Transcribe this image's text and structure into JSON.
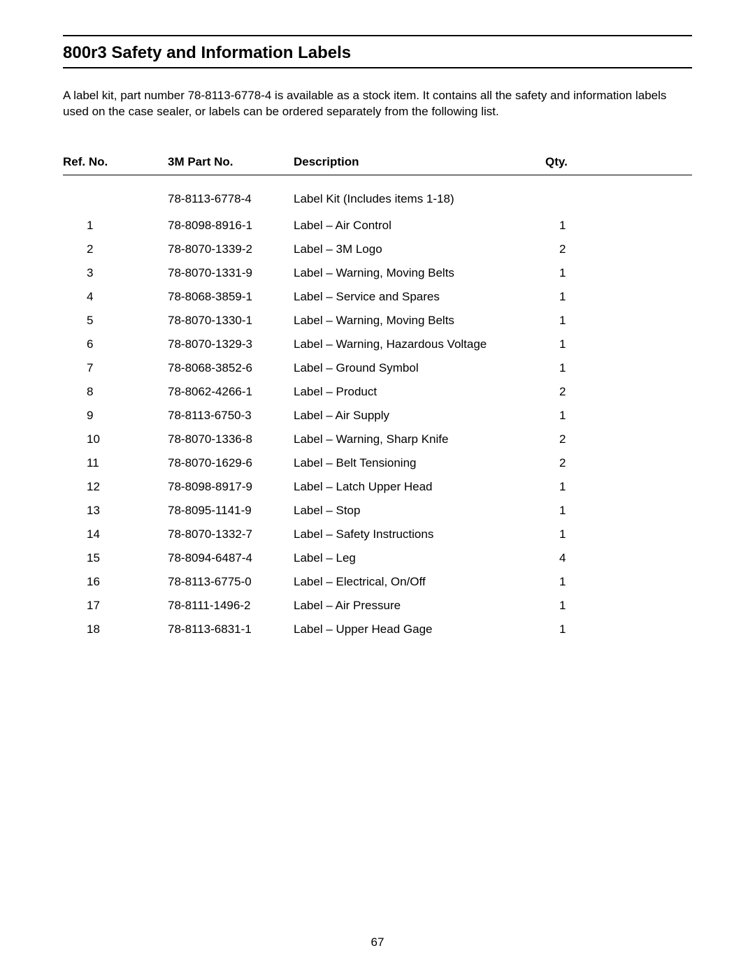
{
  "heading": "800r3 Safety and Information Labels",
  "intro": "A label kit, part number 78-8113-6778-4 is available as a stock item.  It contains all the safety and information labels used on the case sealer, or labels can be ordered separately from the following list.",
  "tableHeaders": {
    "ref": "Ref. No.",
    "part": "3M Part No.",
    "desc": "Description",
    "qty": "Qty."
  },
  "rows": [
    {
      "ref": "",
      "part": "78-8113-6778-4",
      "desc": "Label Kit (Includes items 1-18)",
      "qty": ""
    },
    {
      "ref": "1",
      "part": "78-8098-8916-1",
      "desc": "Label – Air Control",
      "qty": "1"
    },
    {
      "ref": "2",
      "part": "78-8070-1339-2",
      "desc": "Label – 3M Logo",
      "qty": "2"
    },
    {
      "ref": "3",
      "part": "78-8070-1331-9",
      "desc": "Label – Warning, Moving Belts",
      "qty": "1"
    },
    {
      "ref": "4",
      "part": "78-8068-3859-1",
      "desc": "Label – Service and Spares",
      "qty": "1"
    },
    {
      "ref": "5",
      "part": "78-8070-1330-1",
      "desc": "Label – Warning, Moving Belts",
      "qty": "1"
    },
    {
      "ref": "6",
      "part": "78-8070-1329-3",
      "desc": "Label – Warning, Hazardous Voltage",
      "qty": "1"
    },
    {
      "ref": "7",
      "part": "78-8068-3852-6",
      "desc": "Label – Ground Symbol",
      "qty": "1"
    },
    {
      "ref": "8",
      "part": "78-8062-4266-1",
      "desc": "Label – Product",
      "qty": "2"
    },
    {
      "ref": "9",
      "part": "78-8113-6750-3",
      "desc": "Label – Air Supply",
      "qty": "1"
    },
    {
      "ref": "10",
      "part": "78-8070-1336-8",
      "desc": "Label – Warning, Sharp Knife",
      "qty": "2"
    },
    {
      "ref": "11",
      "part": "78-8070-1629-6",
      "desc": "Label – Belt Tensioning",
      "qty": "2"
    },
    {
      "ref": "12",
      "part": "78-8098-8917-9",
      "desc": "Label – Latch Upper Head",
      "qty": "1"
    },
    {
      "ref": "13",
      "part": "78-8095-1141-9",
      "desc": "Label – Stop",
      "qty": "1"
    },
    {
      "ref": "14",
      "part": "78-8070-1332-7",
      "desc": "Label – Safety Instructions",
      "qty": "1"
    },
    {
      "ref": "15",
      "part": "78-8094-6487-4",
      "desc": "Label – Leg",
      "qty": "4"
    },
    {
      "ref": "16",
      "part": "78-8113-6775-0",
      "desc": "Label – Electrical, On/Off",
      "qty": "1"
    },
    {
      "ref": "17",
      "part": "78-8111-1496-2",
      "desc": "Label – Air Pressure",
      "qty": "1"
    },
    {
      "ref": "18",
      "part": "78-8113-6831-1",
      "desc": "Label – Upper Head Gage",
      "qty": "1"
    }
  ],
  "pageNumber": "67"
}
